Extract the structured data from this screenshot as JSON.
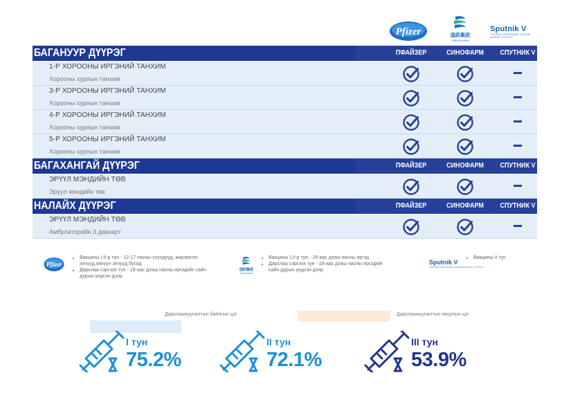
{
  "header_logos": {
    "pfizer": "Pfizer",
    "sinopharm_cn": "国药集团",
    "sinopharm_en": "SINOPHARM",
    "sputnik": "Sputnik V",
    "sputnik_sub": "THE FIRST REGISTERED VACCINE AGAINST COVID-19"
  },
  "columns": [
    "ПФАЙЗЕР",
    "СИНОФАРМ",
    "СПУТНИК V"
  ],
  "districts": [
    {
      "name": "БАГАНУУР ДҮҮРЭГ",
      "rows": [
        {
          "name": "1-Р ХОРООНЫ ИРГЭНИЙ ТАНХИМ",
          "place": "Хорооны хурлын танхим",
          "pfizer": true,
          "sinopharm": true,
          "sputnik": false
        },
        {
          "name": "3-Р ХОРООНЫ ИРГЭНИЙ ТАНХИМ",
          "place": "Хорооны хурлын  танхим",
          "pfizer": true,
          "sinopharm": true,
          "sputnik": false
        },
        {
          "name": "4-Р ХОРООНЫ ИРГЭНИЙ ТАНХИМ",
          "place": "Хорооны хурлын танхим",
          "pfizer": true,
          "sinopharm": true,
          "sputnik": false
        },
        {
          "name": "5-Р ХОРООНЫ ИРГЭНИЙ ТАНХИМ",
          "place": "Хорооны хурлын танхим",
          "pfizer": true,
          "sinopharm": true,
          "sputnik": false
        }
      ]
    },
    {
      "name": "БАГАХАНГАЙ ДҮҮРЭГ",
      "rows": [
        {
          "name": "ЭРҮҮЛ МЭНДИЙН ТӨВ",
          "place": "Эрүүл мэндийн төв",
          "pfizer": true,
          "sinopharm": true,
          "sputnik": false
        }
      ]
    },
    {
      "name": "НАЛАЙХ ДҮҮРЭГ",
      "rows": [
        {
          "name": "ЭРҮҮЛ МЭНДИЙН ТӨВ",
          "place": "Амбулаторийн 3 давхарт",
          "pfizer": true,
          "sinopharm": true,
          "sputnik": false
        }
      ]
    }
  ],
  "legend": {
    "pfizer": [
      "Вакцины I,II-р тун - 12-17 насны хүүхдүүд, жирэмсэн эхчүүд,хөхүүл эхчүүд,бусад",
      "Дархлаа сэргээх тун - 18-аас дээш насны иргэдийг сайн дурын үндсэн дээр"
    ],
    "sinopharm": [
      "Вакцины I,II-р тун - 18-аас дээш насны иргэд",
      "Дархлаа сэргээх тун - 18-аас дээш насны иргэдийг сайн дурын үндсэн дээр"
    ],
    "sputnik": [
      "Вакцины II тун"
    ]
  },
  "bottom": {
    "permanent_label": "Дархлаажуулалтын байнгын цэг",
    "mobile_label": "Дархлаажуулалтын явуулын цэг",
    "doses": [
      {
        "label": "I тун",
        "percent": "75.2%",
        "color": "#1c8fd6"
      },
      {
        "label": "II тун",
        "percent": "72.1%",
        "color": "#1c8fd6"
      },
      {
        "label": "III тун",
        "percent": "53.9%",
        "color": "#23348c"
      }
    ]
  },
  "colors": {
    "navy": "#1e3994",
    "row_bg": "#e4eef8",
    "check": "#2a4190",
    "blue": "#1c8fd6"
  }
}
